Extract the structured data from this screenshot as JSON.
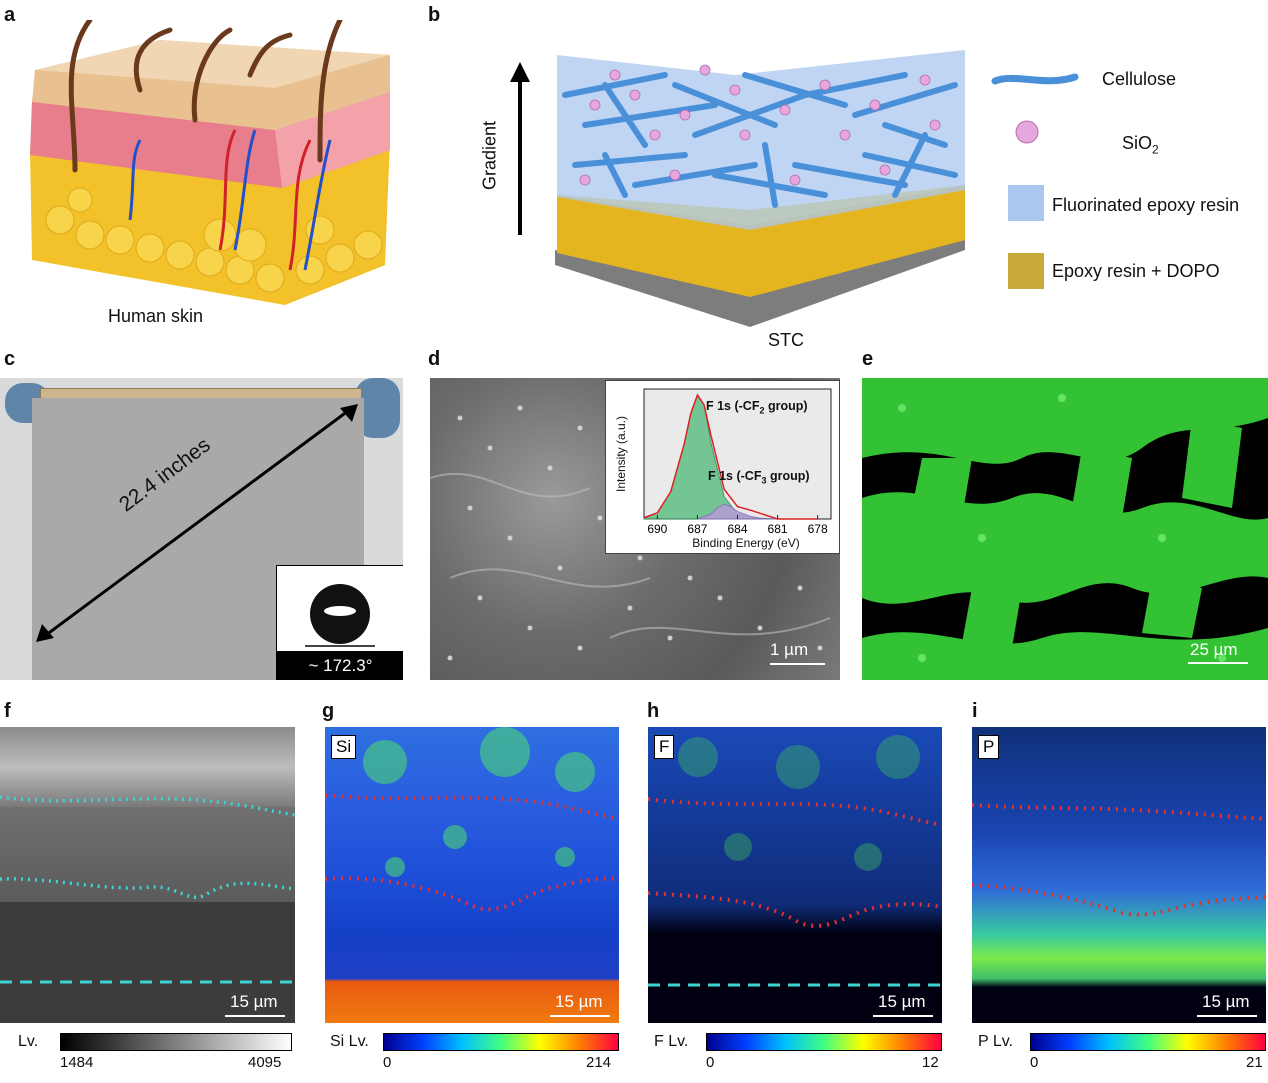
{
  "panels": {
    "a": {
      "label": "a",
      "caption": "Human skin"
    },
    "b": {
      "label": "b",
      "axis_label": "Gradient",
      "caption": "STC",
      "legend": [
        {
          "text": "Cellulose",
          "color": "#4a90d9"
        },
        {
          "text": "SiO",
          "sub": "2",
          "color": "#e7a6dc"
        },
        {
          "text": "Fluorinated epoxy resin",
          "color": "#a9c7ef"
        },
        {
          "text": "Epoxy resin + DOPO",
          "color": "#c9a93a"
        }
      ]
    },
    "c": {
      "label": "c",
      "diagonal": "22.4 inches",
      "contact_angle": "~ 172.3°"
    },
    "d": {
      "label": "d",
      "scale": "1 µm",
      "inset": {
        "ylabel": "Intensity (a.u.)",
        "xlabel": "Binding Energy (eV)",
        "xticks": [
          "690",
          "687",
          "684",
          "681",
          "678"
        ],
        "peak1": "F 1s (-CF",
        "peak1_sub": "2",
        "peak1_end": " group)",
        "peak2": "F 1s (-CF",
        "peak2_sub": "3",
        "peak2_end": " group)"
      }
    },
    "e": {
      "label": "e",
      "scale": "25 µm"
    },
    "f": {
      "label": "f",
      "scale": "15 µm",
      "cbar_label": "Lv.",
      "cbar_min": "1484",
      "cbar_max": "4095"
    },
    "g": {
      "label": "g",
      "tag": "Si",
      "scale": "15 µm",
      "cbar_label": "Si Lv.",
      "cbar_min": "0",
      "cbar_max": "214"
    },
    "h": {
      "label": "h",
      "tag": "F",
      "scale": "15 µm",
      "cbar_label": "F Lv.",
      "cbar_min": "0",
      "cbar_max": "12"
    },
    "i": {
      "label": "i",
      "tag": "P",
      "scale": "15 µm",
      "cbar_label": "P Lv.",
      "cbar_min": "0",
      "cbar_max": "21"
    }
  },
  "chart_data": {
    "type": "line",
    "xlabel": "Binding Energy (eV)",
    "ylabel": "Intensity (a.u.)",
    "xlim": [
      691,
      677
    ],
    "xticks": [
      690,
      687,
      684,
      681,
      678
    ],
    "series": [
      {
        "name": "F 1s (-CF2 group)",
        "x": [
          691,
          690,
          689,
          688,
          687.5,
          687,
          686.5,
          686,
          685,
          684,
          683,
          681,
          678
        ],
        "y": [
          0.01,
          0.05,
          0.22,
          0.6,
          0.85,
          1.0,
          0.92,
          0.62,
          0.18,
          0.04,
          0.01,
          0.0,
          0.0
        ]
      },
      {
        "name": "F 1s (-CF3 group)",
        "x": [
          687,
          686,
          685.5,
          685,
          684.5,
          684,
          683,
          682,
          681
        ],
        "y": [
          0.0,
          0.04,
          0.09,
          0.12,
          0.1,
          0.06,
          0.02,
          0.0,
          0.0
        ]
      }
    ]
  }
}
